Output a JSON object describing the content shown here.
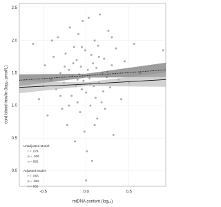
{
  "chart_data": {
    "type": "scatter",
    "xlabel": "mtDNA content (log₁₀)",
    "ylabel": "cord blood insulin (log₁₀ pmol/L)",
    "xlim": [
      -0.78,
      0.93
    ],
    "ylim": [
      -0.24,
      2.57
    ],
    "xticks": [
      -0.5,
      {
        "value": 0,
        "label": "0.0"
      },
      0.5
    ],
    "yticks": [
      {
        "value": 0,
        "label": "0.0"
      },
      0.5,
      {
        "value": 1,
        "label": "1.0"
      },
      1.5,
      {
        "value": 2,
        "label": "2.0"
      },
      2.5
    ],
    "grid": true,
    "series": [
      {
        "color": "#8a8a8a",
        "x": [
          -0.62,
          -0.55,
          -0.48,
          -0.45,
          -0.41,
          -0.38,
          -0.35,
          -0.33,
          -0.3,
          -0.28,
          -0.26,
          -0.24,
          -0.22,
          -0.2,
          -0.19,
          -0.17,
          -0.16,
          -0.14,
          -0.13,
          -0.12,
          -0.11,
          -0.1,
          -0.09,
          -0.08,
          -0.07,
          -0.06,
          -0.05,
          -0.04,
          -0.03,
          -0.02,
          -0.01,
          0.0,
          0.01,
          0.02,
          0.03,
          0.04,
          0.05,
          0.06,
          0.07,
          0.08,
          0.09,
          0.1,
          0.11,
          0.12,
          0.13,
          0.14,
          0.15,
          0.16,
          0.18,
          0.19,
          0.21,
          0.22,
          0.24,
          0.26,
          0.28,
          0.3,
          0.32,
          0.35,
          0.38,
          0.41,
          0.45,
          0.5,
          0.56,
          0.63,
          0.9,
          -0.5,
          -0.4,
          -0.3,
          -0.25,
          -0.2,
          -0.15,
          -0.1,
          -0.05,
          0.0,
          0.05,
          0.1,
          0.15,
          0.2,
          0.25,
          0.3
        ],
        "values": [
          1.95,
          1.1,
          1.62,
          0.85,
          1.4,
          1.75,
          1.25,
          2.05,
          1.5,
          0.95,
          1.35,
          1.8,
          0.7,
          1.55,
          2.2,
          1.15,
          1.45,
          1.9,
          0.45,
          1.3,
          1.7,
          1.05,
          2.1,
          1.48,
          0.9,
          1.6,
          1.25,
          2.3,
          1.38,
          0.6,
          1.85,
          1.2,
          0.3,
          1.55,
          2.35,
          1.42,
          1.0,
          1.78,
          0.15,
          1.65,
          1.3,
          2.0,
          1.12,
          1.58,
          0.8,
          1.92,
          1.36,
          2.4,
          1.05,
          1.5,
          1.72,
          0.95,
          1.44,
          2.15,
          1.28,
          1.62,
          0.55,
          1.88,
          1.4,
          1.1,
          1.68,
          1.35,
          1.95,
          1.5,
          1.85,
          1.3,
          2.0,
          1.15,
          1.6,
          1.0,
          1.65,
          1.4,
          1.9,
          -0.15,
          1.33,
          0.7,
          1.75,
          1.22,
          1.52,
          2.05
        ]
      }
    ],
    "fits": [
      {
        "style": "dotted",
        "band_color": "#5c5c5c",
        "x": [
          -0.78,
          0,
          0.93
        ],
        "y": [
          1.39,
          1.46,
          1.55
        ],
        "ci_lower": [
          1.3,
          1.43,
          1.44
        ],
        "ci_upper": [
          1.48,
          1.49,
          1.66
        ]
      },
      {
        "style": "solid",
        "band_color": "#b4b4b4",
        "x": [
          -0.78,
          0,
          0.93
        ],
        "y": [
          1.28,
          1.33,
          1.4
        ],
        "ci_lower": [
          1.19,
          1.3,
          1.29
        ],
        "ci_upper": [
          1.37,
          1.36,
          1.51
        ]
      }
    ],
    "annotations": [
      "Unadjusted Model:",
      "r = .074",
      "p = .026",
      "n = 682",
      "Adjusted Model:",
      "r = .063",
      "p = .062",
      "n = 682"
    ]
  }
}
